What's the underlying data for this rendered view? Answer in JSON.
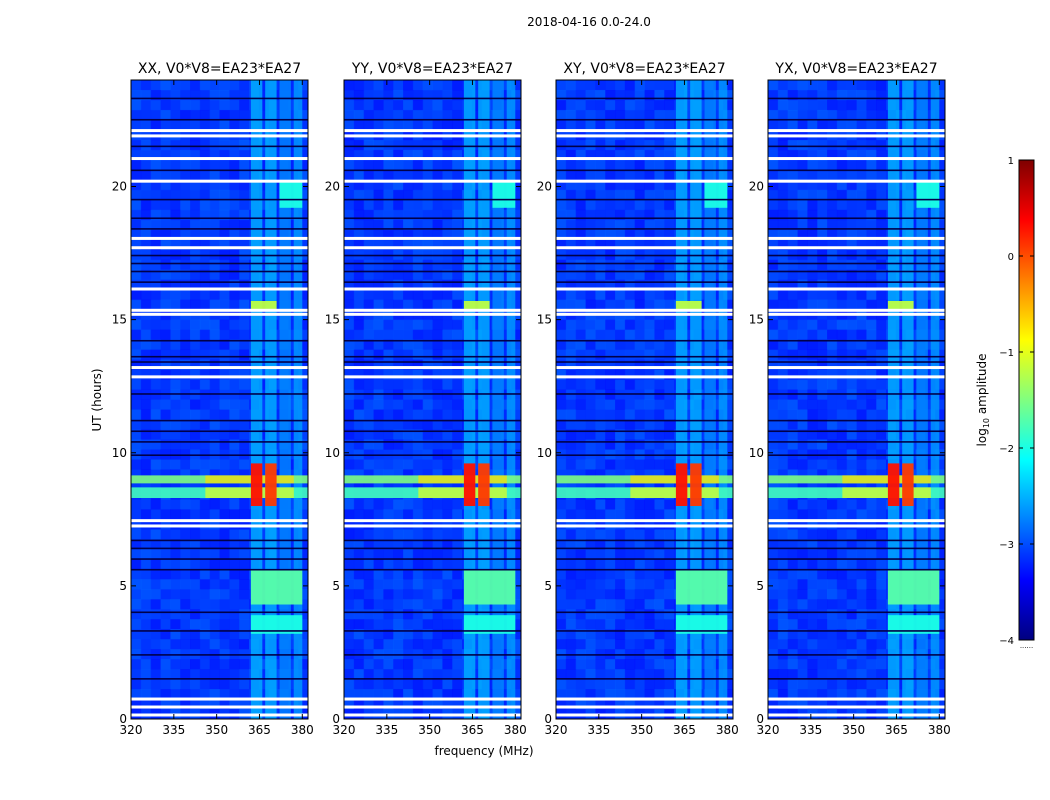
{
  "chart_data": {
    "type": "heatmap",
    "title": "2018-04-16 0.0-24.0",
    "xlabel": "frequency (MHz)",
    "ylabel": "UT (hours)",
    "xlim": [
      320,
      382
    ],
    "ylim": [
      0,
      24
    ],
    "xticks": [
      320,
      335,
      350,
      365,
      380
    ],
    "yticks": [
      0,
      5,
      10,
      15,
      20
    ],
    "panels": [
      {
        "name": "XX",
        "title": "XX, V0*V8=EA23*EA27"
      },
      {
        "name": "YY",
        "title": "YY, V0*V8=EA23*EA27"
      },
      {
        "name": "XY",
        "title": "XY, V0*V8=EA23*EA27"
      },
      {
        "name": "YX",
        "title": "YX, V0*V8=EA23*EA27"
      }
    ],
    "colorbar": {
      "label": "log10 amplitude",
      "label_main": "log",
      "label_sub": "10",
      "label_rest": " amplitude",
      "range": [
        -4,
        1
      ],
      "ticks": [
        -4,
        -3,
        -2,
        -1,
        0,
        1
      ],
      "tick_labels": [
        "−4",
        "−3",
        "−2",
        "−1",
        "0",
        "1"
      ],
      "extra_label": "......",
      "colormap": [
        "#00007f",
        "#0000ff",
        "#0080ff",
        "#00ffff",
        "#80ff80",
        "#ffff00",
        "#ff8000",
        "#ff0000",
        "#7f0000"
      ]
    },
    "background_level": -3.1,
    "flagged_rows_hours": [
      0.15,
      0.45,
      0.75,
      7.25,
      7.45,
      12.85,
      13.2,
      15.2,
      15.35,
      16.15,
      17.7,
      18.05,
      20.2,
      21.05,
      21.9,
      22.1
    ],
    "dark_rows_hours": [
      1.5,
      2.4,
      3.3,
      4.0,
      5.6,
      6.0,
      6.4,
      6.7,
      9.9,
      10.4,
      10.8,
      11.2,
      12.2,
      13.4,
      13.6,
      14.2,
      16.4,
      16.8,
      17.1,
      17.4,
      18.4,
      18.8,
      19.5,
      20.6,
      21.5,
      22.5,
      23.3
    ],
    "rfi_channels_mhz": [
      {
        "from": 362,
        "to": 366,
        "level": -2.5
      },
      {
        "from": 367,
        "to": 371,
        "level": -2.5
      },
      {
        "from": 372,
        "to": 376,
        "level": -2.7
      },
      {
        "from": 377,
        "to": 380,
        "level": -2.6
      }
    ],
    "bursts": [
      {
        "t0": 8.0,
        "t1": 9.6,
        "f0": 362,
        "f1": 366,
        "level": 0.3
      },
      {
        "t0": 8.0,
        "t1": 9.6,
        "f0": 367,
        "f1": 371,
        "level": 0.1
      },
      {
        "t0": 4.3,
        "t1": 5.6,
        "f0": 362,
        "f1": 380,
        "level": -1.7
      },
      {
        "t0": 3.2,
        "t1": 3.9,
        "f0": 362,
        "f1": 380,
        "level": -2.0
      },
      {
        "t0": 15.4,
        "t1": 15.7,
        "f0": 362,
        "f1": 371,
        "level": -1.2
      },
      {
        "t0": 19.2,
        "t1": 20.2,
        "f0": 372,
        "f1": 380,
        "level": -2.0
      }
    ],
    "broadband_events": [
      {
        "t": 8.5,
        "width_h": 0.4,
        "level": -1.3
      },
      {
        "t": 9.0,
        "width_h": 0.3,
        "level": -1.0
      }
    ]
  }
}
